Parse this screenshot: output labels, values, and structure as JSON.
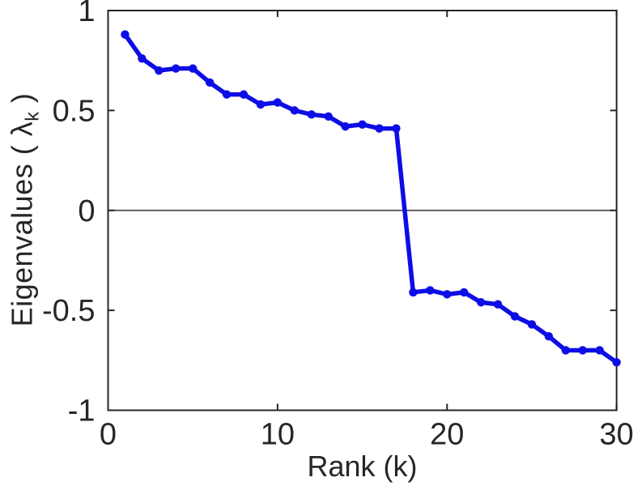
{
  "chart_data": {
    "type": "line",
    "title": "",
    "xlabel": "Rank (k)",
    "ylabel_prefix": "Eigenvalues ( ",
    "ylabel_symbol": "λ",
    "ylabel_subscript": "k",
    "ylabel_suffix": " )",
    "x": [
      1,
      2,
      3,
      4,
      5,
      6,
      7,
      8,
      9,
      10,
      11,
      12,
      13,
      14,
      15,
      16,
      17,
      18,
      19,
      20,
      21,
      22,
      23,
      24,
      25,
      26,
      27,
      28,
      29,
      30
    ],
    "series": [
      {
        "name": "eigenvalues",
        "color": "#0d0de6",
        "values": [
          0.88,
          0.76,
          0.7,
          0.71,
          0.71,
          0.64,
          0.58,
          0.58,
          0.53,
          0.54,
          0.5,
          0.48,
          0.47,
          0.42,
          0.43,
          0.41,
          0.41,
          -0.41,
          -0.4,
          -0.42,
          -0.41,
          -0.46,
          -0.47,
          -0.53,
          -0.57,
          -0.63,
          -0.7,
          -0.7,
          -0.7,
          -0.76
        ]
      }
    ],
    "xlim": [
      0,
      30
    ],
    "ylim": [
      -1,
      1
    ],
    "xticks": [
      0,
      10,
      20,
      30
    ],
    "xtick_labels": [
      "0",
      "10",
      "20",
      "30"
    ],
    "yticks": [
      -1,
      -0.5,
      0,
      0.5,
      1
    ],
    "ytick_labels": [
      "-1",
      "-0.5",
      "0",
      "0.5",
      "1"
    ],
    "grid": false,
    "legend": null,
    "zero_line": true,
    "box": true,
    "axis_color": "#262626",
    "zero_line_color": "#4d4d4d",
    "marker": "circle",
    "line_width": 5.5,
    "marker_radius": 5.2
  }
}
